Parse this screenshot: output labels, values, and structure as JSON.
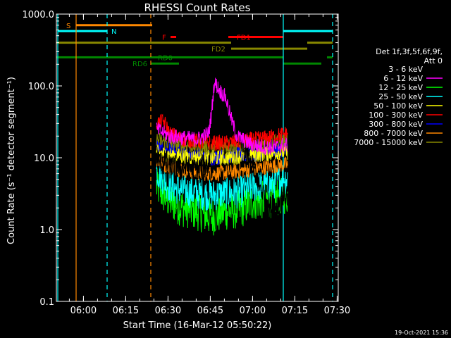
{
  "chart_data": {
    "type": "line",
    "title": "RHESSI Count Rates",
    "xlabel": "Start Time (16-Mar-12 05:50:22)",
    "ylabel": "Count Rate (s⁻¹ detector segment⁻¹)",
    "yscale": "log",
    "xlim_minutes": [
      0,
      100
    ],
    "ylim": [
      0.1,
      1000
    ],
    "x_ticks": [
      {
        "label": "06:00",
        "minute": 9.6
      },
      {
        "label": "06:15",
        "minute": 24.6
      },
      {
        "label": "06:30",
        "minute": 39.6
      },
      {
        "label": "06:45",
        "minute": 54.6
      },
      {
        "label": "07:00",
        "minute": 69.6
      },
      {
        "label": "07:15",
        "minute": 84.6
      },
      {
        "label": "07:30",
        "minute": 99.6
      }
    ],
    "y_ticks": [
      {
        "label": "1000.0",
        "value": 1000
      },
      {
        "label": "100.0",
        "value": 100
      },
      {
        "label": "10.0",
        "value": 10
      },
      {
        "label": "1.0",
        "value": 1
      },
      {
        "label": "0.1",
        "value": 0.1
      }
    ],
    "legend_header": [
      "Det 1f,3f,5f,6f,9f,",
      "Att 0"
    ],
    "legend_position": "right",
    "data_window_minutes": [
      35.5,
      82.0
    ],
    "series": [
      {
        "name": "3 - 6 keV",
        "color": "#000000",
        "points": [
          [
            35.5,
            9
          ],
          [
            40,
            7.5
          ],
          [
            50,
            7
          ],
          [
            54,
            8
          ],
          [
            55,
            20
          ],
          [
            56,
            60
          ],
          [
            57,
            90
          ],
          [
            58,
            70
          ],
          [
            60,
            75
          ],
          [
            62,
            40
          ],
          [
            64,
            22
          ],
          [
            66,
            15
          ],
          [
            68,
            10
          ],
          [
            70,
            7
          ],
          [
            72,
            4
          ],
          [
            74,
            3
          ],
          [
            76,
            2
          ],
          [
            78,
            2
          ],
          [
            80,
            3
          ],
          [
            82,
            3
          ]
        ]
      },
      {
        "name": "6 - 12 keV",
        "color": "#ff00ff",
        "points": [
          [
            35.5,
            25
          ],
          [
            40,
            20
          ],
          [
            50,
            18
          ],
          [
            54,
            22
          ],
          [
            55,
            40
          ],
          [
            56,
            110
          ],
          [
            57,
            100
          ],
          [
            58,
            85
          ],
          [
            60,
            70
          ],
          [
            62,
            35
          ],
          [
            64,
            20
          ],
          [
            66,
            18
          ],
          [
            68,
            16
          ],
          [
            70,
            15
          ],
          [
            74,
            14
          ],
          [
            78,
            14
          ],
          [
            80,
            15
          ],
          [
            82,
            15
          ]
        ]
      },
      {
        "name": "12 - 25 keV",
        "color": "#00ff00",
        "points": [
          [
            35.5,
            4
          ],
          [
            40,
            2.5
          ],
          [
            45,
            2
          ],
          [
            50,
            1.8
          ],
          [
            55,
            1.5
          ],
          [
            60,
            1.8
          ],
          [
            65,
            1.9
          ],
          [
            70,
            2.5
          ],
          [
            75,
            2.6
          ],
          [
            80,
            3
          ],
          [
            82,
            3
          ]
        ]
      },
      {
        "name": "25 - 50 keV",
        "color": "#00ffff",
        "points": [
          [
            35.5,
            6.5
          ],
          [
            40,
            4
          ],
          [
            45,
            3.5
          ],
          [
            50,
            3.2
          ],
          [
            55,
            3
          ],
          [
            60,
            3.2
          ],
          [
            65,
            3.3
          ],
          [
            70,
            4
          ],
          [
            75,
            4
          ],
          [
            80,
            5
          ],
          [
            82,
            5.2
          ]
        ]
      },
      {
        "name": "50 - 100 keV",
        "color": "#ffff00",
        "points": [
          [
            35.5,
            12
          ],
          [
            40,
            11
          ],
          [
            50,
            10
          ],
          [
            60,
            10
          ],
          [
            70,
            11
          ],
          [
            80,
            12
          ],
          [
            82,
            12
          ]
        ]
      },
      {
        "name": "100 - 300 keV",
        "color": "#ff0000",
        "points": [
          [
            35.5,
            30
          ],
          [
            38,
            32
          ],
          [
            39,
            28
          ],
          [
            40,
            22
          ],
          [
            45,
            18
          ],
          [
            50,
            17
          ],
          [
            55,
            16
          ],
          [
            60,
            16
          ],
          [
            65,
            17
          ],
          [
            70,
            18
          ],
          [
            75,
            19
          ],
          [
            80,
            21
          ],
          [
            82,
            22
          ]
        ]
      },
      {
        "name": "300 - 800 keV",
        "color": "#0000ff",
        "points": [
          [
            35.5,
            15
          ],
          [
            40,
            13
          ],
          [
            45,
            12
          ],
          [
            50,
            11
          ],
          [
            55,
            10
          ],
          [
            60,
            10.5
          ],
          [
            65,
            11
          ],
          [
            70,
            11
          ],
          [
            75,
            12
          ],
          [
            80,
            13
          ],
          [
            82,
            14
          ]
        ]
      },
      {
        "name": "800 - 7000 keV",
        "color": "#ff8800",
        "points": [
          [
            35.5,
            9
          ],
          [
            40,
            7.5
          ],
          [
            45,
            6.8
          ],
          [
            50,
            6.2
          ],
          [
            55,
            6
          ],
          [
            60,
            6.2
          ],
          [
            65,
            6.5
          ],
          [
            70,
            7
          ],
          [
            75,
            7.5
          ],
          [
            80,
            8
          ],
          [
            82,
            8
          ]
        ]
      },
      {
        "name": "7000 - 15000 keV",
        "color": "#888800",
        "points": [
          [
            35.5,
            18
          ],
          [
            40,
            16
          ],
          [
            45,
            15
          ],
          [
            50,
            14.5
          ],
          [
            55,
            14
          ],
          [
            60,
            14.5
          ],
          [
            65,
            15
          ],
          [
            70,
            15.5
          ],
          [
            75,
            16
          ],
          [
            80,
            17
          ],
          [
            82,
            18
          ]
        ]
      }
    ],
    "vertical_lines": [
      {
        "minute": 0.5,
        "color": "#00ffff",
        "style": "solid"
      },
      {
        "minute": 7,
        "color": "#ff8800",
        "style": "solid"
      },
      {
        "minute": 18,
        "color": "#00ffff",
        "style": "dashed"
      },
      {
        "minute": 33.5,
        "color": "#ff8800",
        "style": "dashed"
      },
      {
        "minute": 80.5,
        "color": "#00ffff",
        "style": "solid"
      },
      {
        "minute": 98,
        "color": "#00ffff",
        "style": "dashed"
      }
    ],
    "flag_bars": [
      {
        "label": "S",
        "color": "#ff8800",
        "y": 700,
        "x0": 7,
        "x1": 34,
        "label_at": 3.5
      },
      {
        "label": "N",
        "color": "#00ffff",
        "y": 580,
        "x0": 0.5,
        "x1": 18,
        "label_at": 19.5
      },
      {
        "label": "N",
        "color": "#00ffff",
        "y": 580,
        "x0": 80.5,
        "x1": 98,
        "label_at": null
      },
      {
        "label": "F",
        "color": "#ff0000",
        "y": 480,
        "x0": 40.5,
        "x1": 42.5,
        "label_at": 37.5
      },
      {
        "label": "FD1",
        "color": "#ff0000",
        "y": 480,
        "x0": 61,
        "x1": 80.5,
        "label_at": 64
      },
      {
        "label": "",
        "color": "#888800",
        "y": 400,
        "x0": 0,
        "x1": 62,
        "label_at": null
      },
      {
        "label": "",
        "color": "#888800",
        "y": 400,
        "x0": 89,
        "x1": 98,
        "label_at": null
      },
      {
        "label": "FD2",
        "color": "#888800",
        "y": 330,
        "x0": 62,
        "x1": 89,
        "label_at": 55
      },
      {
        "label": "RD0",
        "color": "#008800",
        "y": 250,
        "x0": 0,
        "x1": 80.5,
        "label_at": 36
      },
      {
        "label": "",
        "color": "#008800",
        "y": 250,
        "x0": 96,
        "x1": 98,
        "label_at": null
      },
      {
        "label": "RD6",
        "color": "#008800",
        "y": 205,
        "x0": 33.5,
        "x1": 43.5,
        "label_at": 27
      },
      {
        "label": "",
        "color": "#008800",
        "y": 205,
        "x0": 80.5,
        "x1": 94,
        "label_at": null
      }
    ],
    "timestamp": "19-Oct-2021 15:36"
  }
}
